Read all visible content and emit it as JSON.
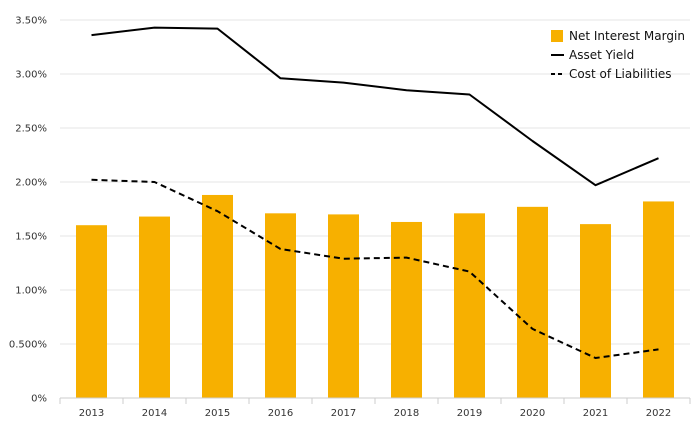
{
  "chart_data": {
    "type": "bar",
    "title": "",
    "xlabel": "",
    "ylabel": "",
    "categories": [
      "2013",
      "2014",
      "2015",
      "2016",
      "2017",
      "2018",
      "2019",
      "2020",
      "2021",
      "2022"
    ],
    "ylim": [
      0,
      3.5
    ],
    "yticks": [
      0,
      0.5,
      1.0,
      1.5,
      2.0,
      2.5,
      3.0,
      3.5
    ],
    "ytick_labels": [
      "0%",
      "0.500%",
      "1.00%",
      "1.50%",
      "2.00%",
      "2.50%",
      "3.00%",
      "3.50%"
    ],
    "grid": true,
    "legend_position": "top-right",
    "series": [
      {
        "name": "Net Interest Margin",
        "type": "bar",
        "color": "#F7B000",
        "values": [
          1.6,
          1.68,
          1.88,
          1.71,
          1.7,
          1.63,
          1.71,
          1.77,
          1.61,
          1.82
        ]
      },
      {
        "name": "Asset Yield",
        "type": "line",
        "style": "solid",
        "color": "#000000",
        "values": [
          3.36,
          3.43,
          3.42,
          2.96,
          2.92,
          2.85,
          2.81,
          2.38,
          1.97,
          2.22
        ]
      },
      {
        "name": "Cost of Liabilities",
        "type": "line",
        "style": "dashed",
        "color": "#000000",
        "values": [
          2.02,
          2.0,
          1.73,
          1.38,
          1.29,
          1.3,
          1.17,
          0.64,
          0.37,
          0.45
        ]
      }
    ]
  }
}
